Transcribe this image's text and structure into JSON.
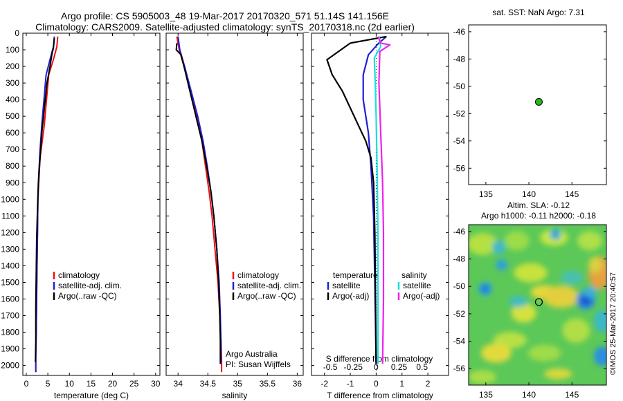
{
  "header": {
    "line1": "Argo profile: CS 5905003_48 19-Mar-2017 20170320_571 51.14S 141.156E",
    "line2": "Climatology: CARS2009. Satellite-adjusted climatology: synTS_20170318.nc (2d earlier)"
  },
  "colors": {
    "climatology": "#ee1111",
    "satellite": "#1f1fd6",
    "argo": "#000000",
    "salinity_satellite": "#19e0e0",
    "salinity_argo": "#ee22ee",
    "float_marker": "#22bb22"
  },
  "chart_data": [
    {
      "id": "temperature",
      "type": "line",
      "xlabel": "temperature (deg C)",
      "ylabel": "",
      "xlim": [
        -0.8,
        31
      ],
      "ylim": [
        2060,
        0
      ],
      "xticks": [
        "0",
        "5",
        "10",
        "15",
        "20",
        "25",
        "30"
      ],
      "yticks": [
        "0",
        "100",
        "200",
        "300",
        "400",
        "500",
        "600",
        "700",
        "800",
        "900",
        "1000",
        "1100",
        "1200",
        "1300",
        "1400",
        "1500",
        "1600",
        "1700",
        "1800",
        "1900",
        "2000"
      ],
      "legend": [
        "climatology",
        "satellite-adj. clim.",
        "Argo(..raw -QC)"
      ],
      "series": [
        {
          "name": "climatology",
          "x": [
            7.3,
            7.1,
            6.4,
            5.2,
            4.7,
            4.2,
            3.7,
            3.2,
            2.9,
            2.7,
            2.6,
            2.5,
            2.4,
            2.3,
            2.2,
            2.2
          ],
          "y": [
            20,
            80,
            150,
            250,
            400,
            550,
            650,
            750,
            900,
            1000,
            1200,
            1400,
            1600,
            1800,
            1950,
            2040
          ]
        },
        {
          "name": "satellite-adj. clim.",
          "x": [
            6.5,
            6.3,
            5.6,
            4.6,
            4.1,
            3.6,
            3.2,
            2.9,
            2.7,
            2.6,
            2.5,
            2.4,
            2.3,
            2.2,
            2.2
          ],
          "y": [
            20,
            80,
            150,
            250,
            400,
            550,
            700,
            850,
            1000,
            1200,
            1400,
            1600,
            1800,
            1950,
            2040
          ]
        },
        {
          "name": "Argo(..raw -QC)",
          "x": [
            6.5,
            6.3,
            6.0,
            5.5,
            4.8,
            4.2,
            3.6,
            3.2,
            2.8,
            2.6,
            2.4,
            2.3,
            2.2,
            2.2,
            2.1
          ],
          "y": [
            30,
            90,
            120,
            200,
            300,
            450,
            600,
            750,
            900,
            1050,
            1250,
            1450,
            1650,
            1850,
            1980
          ]
        }
      ]
    },
    {
      "id": "salinity",
      "type": "line",
      "xlabel": "salinity",
      "ylabel": "",
      "xlim": [
        33.8,
        36.1
      ],
      "ylim": [
        2060,
        0
      ],
      "xticks": [
        "34",
        "34.5",
        "35",
        "35.5",
        "36"
      ],
      "legend": [
        "climatology",
        "satellite-adj. clim.",
        "Argo(..raw -QC)"
      ],
      "series": [
        {
          "name": "climatology",
          "x": [
            33.98,
            34.02,
            34.1,
            34.22,
            34.32,
            34.4,
            34.46,
            34.52,
            34.57,
            34.62,
            34.67,
            34.7,
            34.72,
            34.73,
            34.73
          ],
          "y": [
            20,
            100,
            200,
            350,
            500,
            650,
            800,
            950,
            1100,
            1300,
            1500,
            1700,
            1850,
            1950,
            2040
          ]
        },
        {
          "name": "satellite-adj. clim.",
          "x": [
            34.0,
            34.03,
            34.11,
            34.22,
            34.33,
            34.42,
            34.49,
            34.55,
            34.6,
            34.65,
            34.69,
            34.71,
            34.72,
            34.72
          ],
          "y": [
            20,
            100,
            200,
            350,
            500,
            650,
            800,
            950,
            1100,
            1300,
            1500,
            1700,
            1850,
            1990
          ]
        },
        {
          "name": "Argo(..raw -QC)",
          "x": [
            33.98,
            33.97,
            34.05,
            34.1,
            34.2,
            34.3,
            34.4,
            34.48,
            34.55,
            34.6,
            34.65,
            34.68,
            34.7,
            34.71,
            34.71
          ],
          "y": [
            60,
            100,
            130,
            200,
            350,
            500,
            650,
            800,
            950,
            1100,
            1300,
            1500,
            1700,
            1850,
            1990
          ]
        }
      ],
      "annotation": [
        "Argo Australia",
        "PI: Susan Wijffels"
      ]
    },
    {
      "id": "differences",
      "type": "line",
      "xlabel": "T difference from climatology",
      "top_axis_label": "S difference from climatology",
      "xlim": [
        -2.5,
        2.8
      ],
      "ylim": [
        2060,
        0
      ],
      "xticks": [
        "-2",
        "-1",
        "0",
        "1",
        "2"
      ],
      "sticks": [
        "-0.5",
        "-0.25",
        "0",
        "0.25",
        "0.5"
      ],
      "legend_headers": [
        "temperature",
        "salinity"
      ],
      "legend": [
        "satellite",
        "Argo(-adj)",
        "satellite",
        "Argo(-adj)"
      ],
      "series": [
        {
          "name": "temperature satellite",
          "x": [
            0.4,
            0.1,
            -0.3,
            -0.5,
            -0.5,
            -0.3,
            -0.2,
            -0.1,
            -0.05,
            0
          ],
          "y": [
            20,
            60,
            130,
            250,
            400,
            600,
            800,
            1100,
            1500,
            1990
          ]
        },
        {
          "name": "temperature Argo(-adj)",
          "x": [
            0.4,
            -1.0,
            -1.9,
            -1.7,
            -1.3,
            -1.0,
            -0.7,
            -0.4,
            -0.2,
            -0.1,
            -0.05,
            0
          ],
          "y": [
            20,
            60,
            160,
            250,
            350,
            450,
            550,
            650,
            750,
            900,
            1200,
            1990
          ]
        },
        {
          "name": "salinity satellite",
          "x": [
            0.03,
            0.05,
            -0.02,
            -0.01,
            0,
            0.01,
            0.02,
            0.02
          ],
          "y": [
            20,
            80,
            150,
            300,
            500,
            800,
            1200,
            1990
          ]
        },
        {
          "name": "salinity Argo(-adj)",
          "x": [
            0.02,
            0.05,
            0.15,
            0.04,
            0.03,
            0.05,
            0.07,
            0.08,
            0.08,
            0.07
          ],
          "y": [
            20,
            60,
            70,
            110,
            300,
            600,
            900,
            1200,
            1600,
            1990
          ]
        }
      ]
    },
    {
      "id": "sst-map",
      "type": "scatter",
      "title": "sat. SST: NaN Argo: 7.31",
      "xlim": [
        133,
        149
      ],
      "ylim": [
        -57.2,
        -45.5
      ],
      "xticks": [
        "135",
        "140",
        "145"
      ],
      "yticks": [
        "-46",
        "-48",
        "-50",
        "-52",
        "-54",
        "-56"
      ],
      "points": [
        {
          "x": 141.156,
          "y": -51.14
        }
      ]
    },
    {
      "id": "sla-map",
      "type": "heatmap",
      "title": [
        "Altim. SLA: -0.12",
        "Argo h1000: -0.11 h2000: -0.18"
      ],
      "xlim": [
        133,
        149
      ],
      "ylim": [
        -57.2,
        -45.5
      ],
      "xticks": [
        "135",
        "140",
        "145"
      ],
      "yticks": [
        "-46",
        "-48",
        "-50",
        "-52",
        "-54",
        "-56"
      ],
      "points": [
        {
          "x": 141.156,
          "y": -51.14
        }
      ],
      "side_label": "©IMOS 25-Mar-2017 20:40:57"
    }
  ]
}
